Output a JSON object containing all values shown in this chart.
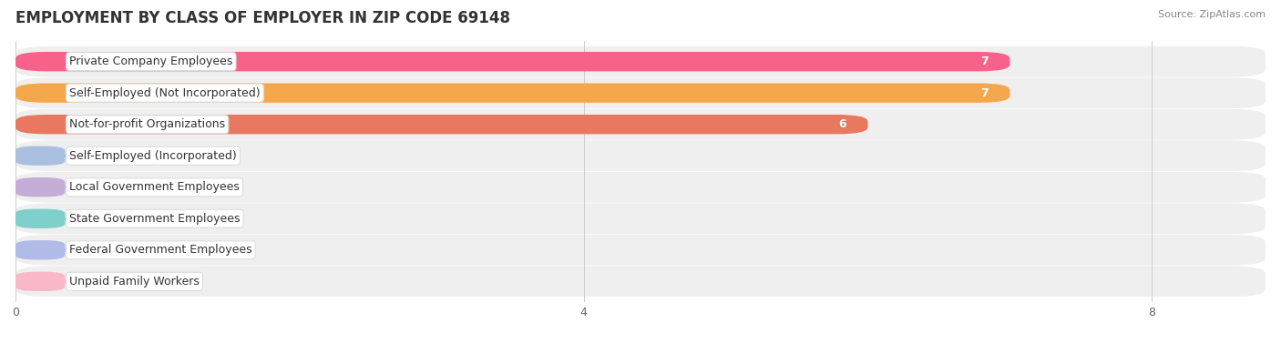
{
  "title": "EMPLOYMENT BY CLASS OF EMPLOYER IN ZIP CODE 69148",
  "source": "Source: ZipAtlas.com",
  "categories": [
    "Private Company Employees",
    "Self-Employed (Not Incorporated)",
    "Not-for-profit Organizations",
    "Self-Employed (Incorporated)",
    "Local Government Employees",
    "State Government Employees",
    "Federal Government Employees",
    "Unpaid Family Workers"
  ],
  "values": [
    7,
    7,
    6,
    0,
    0,
    0,
    0,
    0
  ],
  "bar_colors": [
    "#F7618A",
    "#F5A84B",
    "#E87860",
    "#A8BFDF",
    "#C4AED8",
    "#7FD0CC",
    "#B0BBE8",
    "#F9B8C8"
  ],
  "xlim": [
    0,
    8.8
  ],
  "xticks": [
    0,
    4,
    8
  ],
  "background_color": "#FFFFFF",
  "row_bg_color": "#EFEFEF",
  "title_fontsize": 12,
  "bar_label_fontsize": 9,
  "category_fontsize": 9,
  "source_fontsize": 8
}
